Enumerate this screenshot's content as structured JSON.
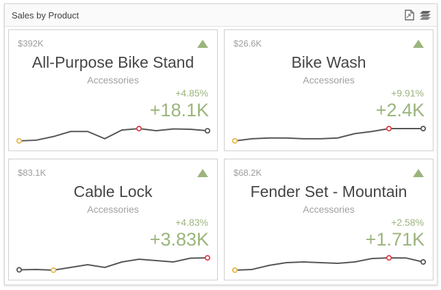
{
  "header": {
    "title": "Sales by Product",
    "icons": [
      "export-icon",
      "layers-icon"
    ]
  },
  "colors": {
    "positive": "#9bb47c",
    "line": "#555555",
    "min_marker": "#e8b84a",
    "max_marker": "#e0404a",
    "end_marker": "#555555"
  },
  "cards": [
    {
      "target": "$392K",
      "name": "All-Purpose Bike Stand",
      "category": "Accessories",
      "percent": "+4.85%",
      "delta": "+18.1K",
      "indicator": "up-triangle",
      "sparkline": [
        6,
        7,
        12,
        19,
        19,
        9,
        21,
        23,
        20,
        22.5,
        22,
        20
      ]
    },
    {
      "target": "$26.6K",
      "name": "Bike Wash",
      "category": "Accessories",
      "percent": "+9.91%",
      "delta": "+2.4K",
      "indicator": "up-triangle",
      "sparkline": [
        6,
        9,
        10,
        10,
        9,
        9,
        10,
        16,
        19,
        23,
        23,
        23
      ]
    },
    {
      "target": "$83.1K",
      "name": "Cable Lock",
      "category": "Accessories",
      "percent": "+4.83%",
      "delta": "+3.83K",
      "indicator": "up-triangle",
      "sparkline": [
        7.5,
        8,
        7,
        11,
        15,
        11,
        19,
        23,
        21,
        19,
        24.5,
        25
      ]
    },
    {
      "target": "$68.2K",
      "name": "Fender Set - Mountain",
      "category": "Accessories",
      "percent": "+2.58%",
      "delta": "+1.71K",
      "indicator": "up-triangle",
      "sparkline": [
        7,
        8,
        14,
        18,
        19,
        18,
        17,
        19,
        24,
        25,
        24.8,
        19
      ]
    }
  ]
}
